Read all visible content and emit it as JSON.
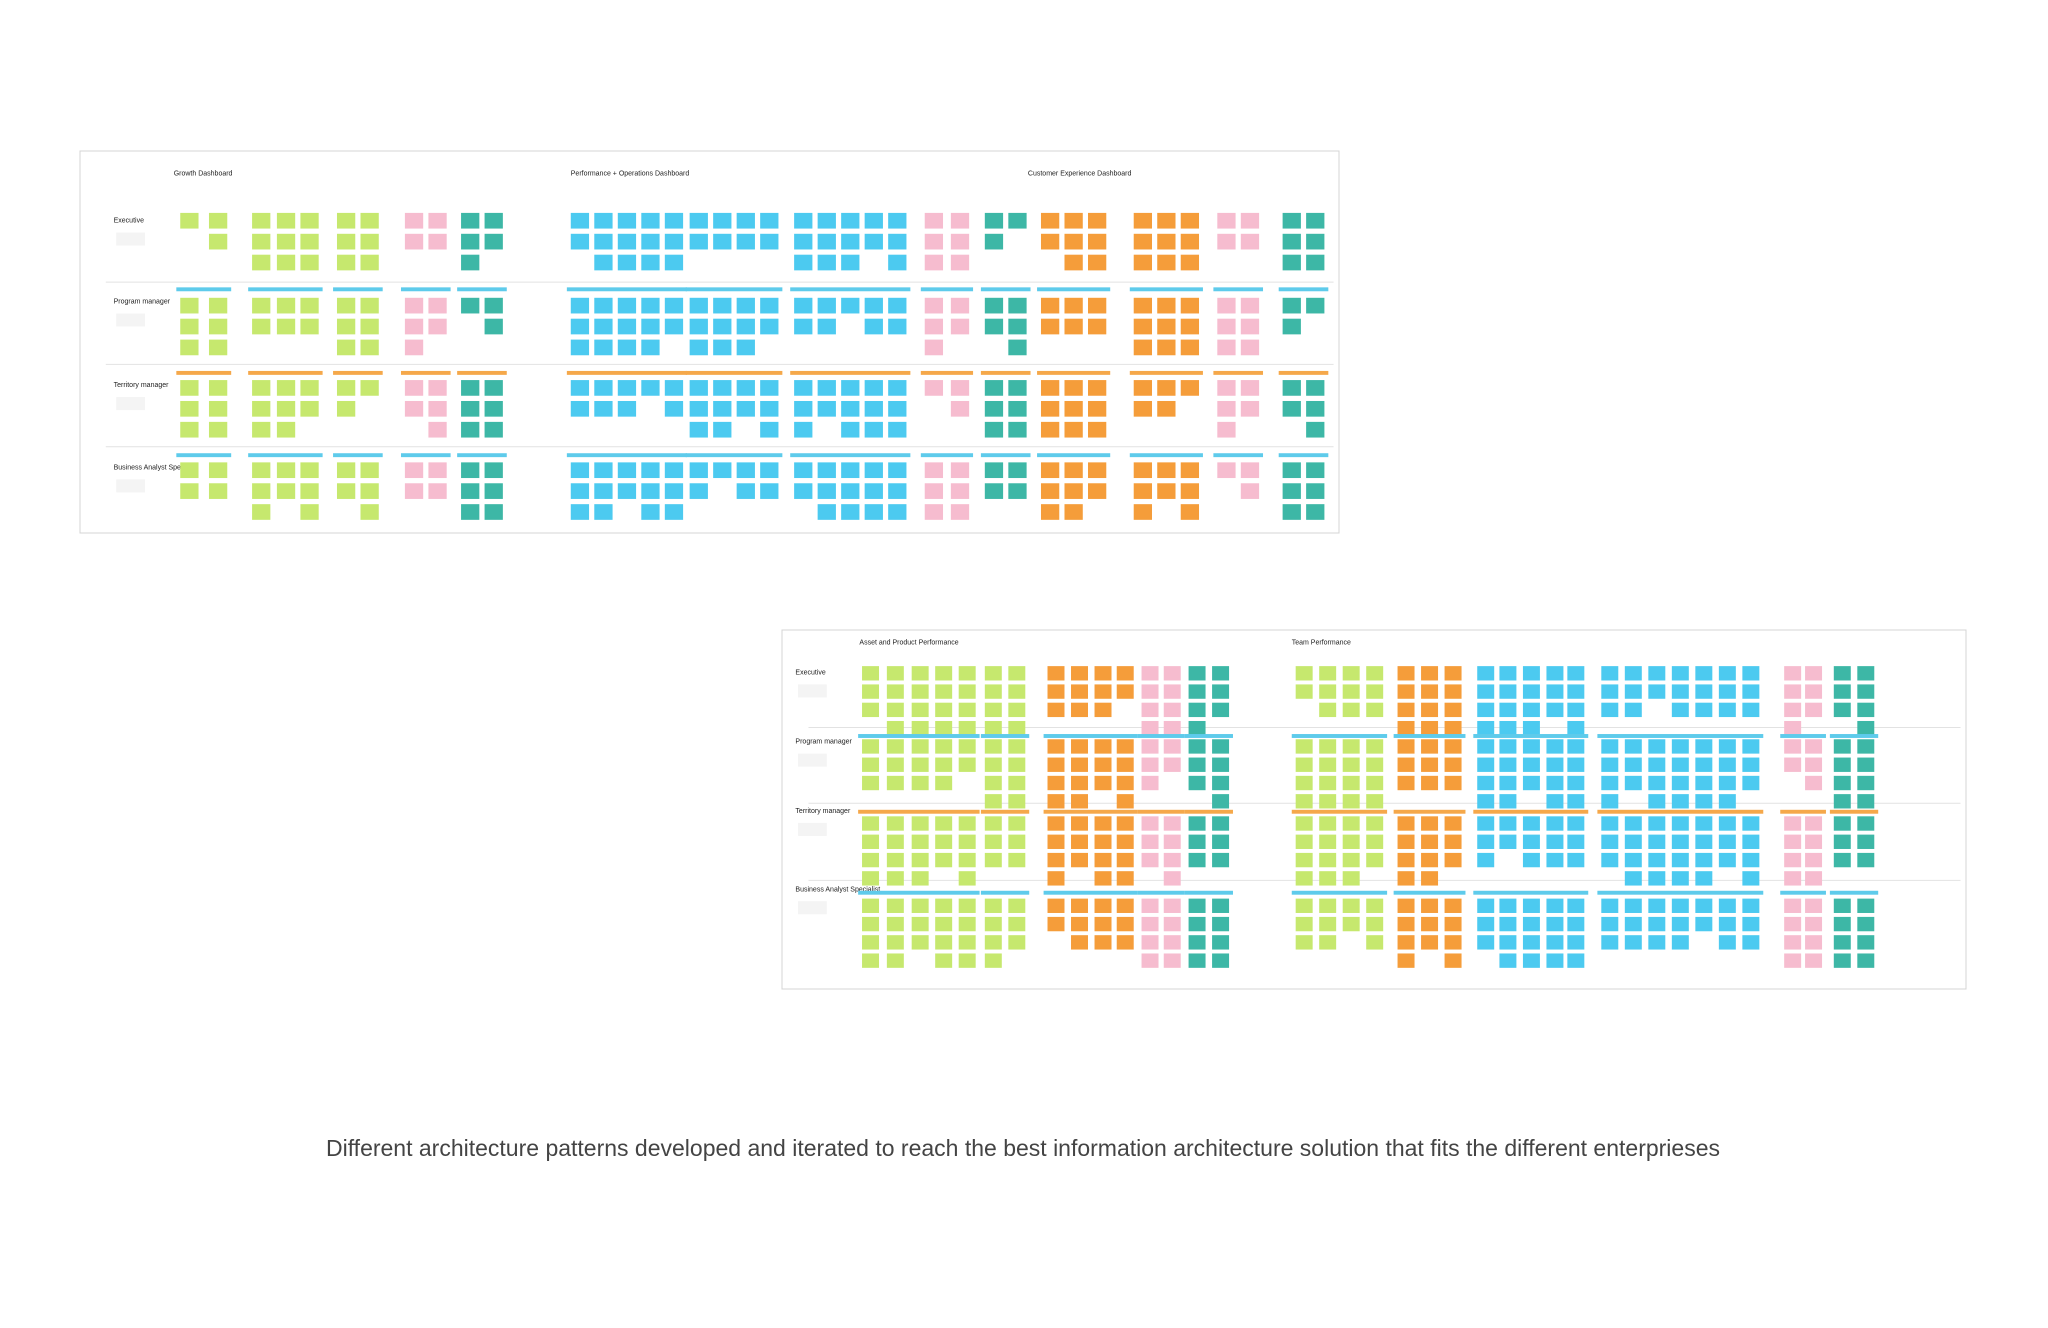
{
  "boards": [
    {
      "sections": [
        "Growth Dashboard",
        "Performance + Operations Dashboard",
        "Customer Experience Dashboard"
      ],
      "rows": [
        "Executive",
        "Program manager",
        "Territory manager",
        "Business Analyst Specialist"
      ]
    },
    {
      "sections": [
        "Asset and Product Performance",
        "Team Performance"
      ],
      "rows": [
        "Executive",
        "Program manager",
        "Territory manager",
        "Business Analyst Specialist"
      ]
    }
  ],
  "caption": "Different architecture patterns developed and iterated to reach the best information architecture solution that fits the different enterprieses"
}
